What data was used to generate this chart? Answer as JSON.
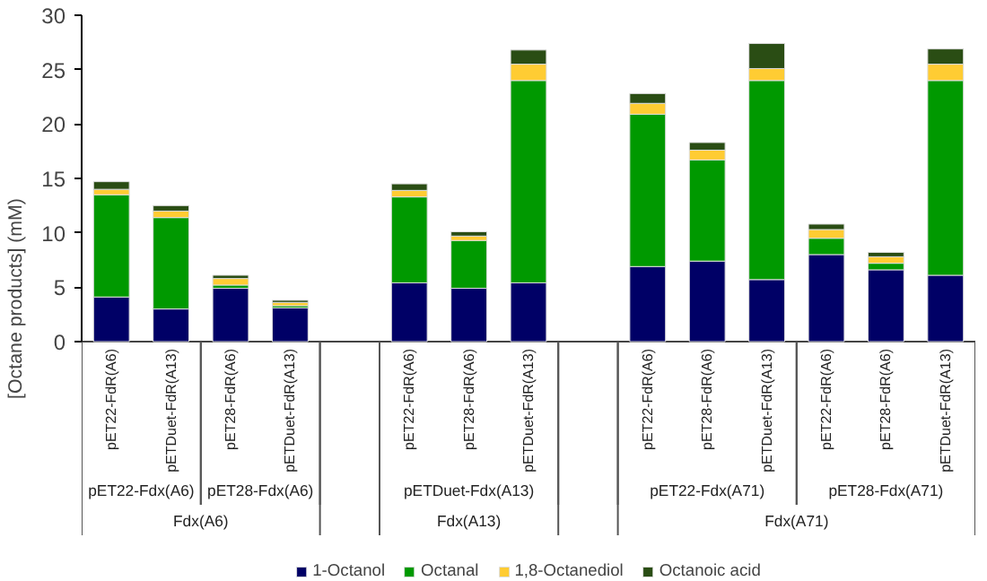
{
  "chart_data": {
    "type": "bar",
    "stacked": true,
    "ylabel": "[Octane products] (mM)",
    "categories": [
      "pET22-FdR(A6)",
      "pETDuet-FdR(A13)",
      "pET28-FdR(A6)",
      "pETDuet-FdR(A13)",
      null,
      "pET22-FdR(A6)",
      "pET28-FdR(A6)",
      "pETDuet-FdR(A13)",
      null,
      "pET22-FdR(A6)",
      "pET28-FdR(A6)",
      "pETDuet-FdR(A13)",
      "pET22-FdR(A6)",
      "pET28-FdR(A6)",
      "pETDuet-FdR(A13)"
    ],
    "series": [
      {
        "name": "1-Octanol",
        "color": "#000066",
        "values": [
          4.1,
          3.0,
          4.9,
          3.1,
          null,
          5.4,
          4.9,
          5.4,
          null,
          6.9,
          7.4,
          5.7,
          8.0,
          6.6,
          6.1
        ]
      },
      {
        "name": "Octanal",
        "color": "#009900",
        "values": [
          9.4,
          8.4,
          0.3,
          0.2,
          null,
          7.9,
          4.4,
          18.6,
          null,
          14.0,
          9.3,
          18.3,
          1.5,
          0.6,
          17.9
        ]
      },
      {
        "name": "1,8-Octanediol",
        "color": "#ffcc33",
        "values": [
          0.5,
          0.6,
          0.6,
          0.3,
          null,
          0.6,
          0.4,
          1.5,
          null,
          1.0,
          0.9,
          1.1,
          0.8,
          0.6,
          1.5
        ]
      },
      {
        "name": "Octanoic acid",
        "color": "#2a4d14",
        "values": [
          0.7,
          0.5,
          0.3,
          0.2,
          null,
          0.6,
          0.4,
          1.3,
          null,
          0.9,
          0.7,
          2.3,
          0.5,
          0.4,
          1.4
        ]
      }
    ],
    "ylim": [
      0,
      30
    ],
    "yticks": [
      0,
      5,
      10,
      15,
      20,
      25,
      30
    ],
    "grid": false,
    "legend": "bottom",
    "annotations": [
      "pET22-Fdx(A6)",
      "pET28-Fdx(A6)",
      "pETDuet-Fdx(A13)",
      "pET22-Fdx(A71)",
      "pET28-Fdx(A71)",
      "Fdx(A6)",
      "Fdx(A13)",
      "Fdx(A71)"
    ]
  }
}
